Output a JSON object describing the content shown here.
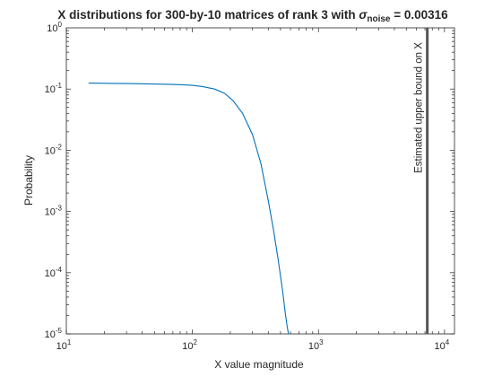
{
  "chart_data": {
    "type": "line",
    "title": {
      "prefix": "X  distributions  for  300-by-10   matrices  of  rank  3  with  ",
      "sigma": "σ",
      "subscript": "noise",
      "suffix": "  =  0.00316"
    },
    "xlabel": "X value magnitude",
    "ylabel": "Probability",
    "xscale": "log",
    "yscale": "log",
    "xlim": [
      10,
      12000
    ],
    "ylim": [
      1e-05,
      1
    ],
    "x_ticks": [
      {
        "base": "10",
        "exp": "1",
        "value": 10
      },
      {
        "base": "10",
        "exp": "2",
        "value": 100
      },
      {
        "base": "10",
        "exp": "3",
        "value": 1000
      },
      {
        "base": "10",
        "exp": "4",
        "value": 10000
      }
    ],
    "y_ticks": [
      {
        "base": "10",
        "exp": "0",
        "value": 1
      },
      {
        "base": "10",
        "exp": "-1",
        "value": 0.1
      },
      {
        "base": "10",
        "exp": "-2",
        "value": 0.01
      },
      {
        "base": "10",
        "exp": "-3",
        "value": 0.001
      },
      {
        "base": "10",
        "exp": "-4",
        "value": 0.0001
      },
      {
        "base": "10",
        "exp": "-5",
        "value": 1e-05
      }
    ],
    "series": [
      {
        "color": "#0072BD",
        "x": [
          15,
          30,
          60,
          80,
          100,
          120,
          150,
          180,
          210,
          250,
          300,
          350,
          400,
          440,
          480,
          520,
          545,
          565,
          578
        ],
        "y": [
          0.125,
          0.123,
          0.12,
          0.118,
          0.115,
          0.11,
          0.1,
          0.085,
          0.065,
          0.04,
          0.018,
          0.006,
          0.0015,
          0.0005,
          0.00016,
          5e-05,
          2.2e-05,
          1.3e-05,
          1e-05
        ]
      }
    ],
    "vline": {
      "x": 7300,
      "color": "#555555",
      "label": "Estimated upper bound on X"
    },
    "grid": false,
    "box": true
  }
}
